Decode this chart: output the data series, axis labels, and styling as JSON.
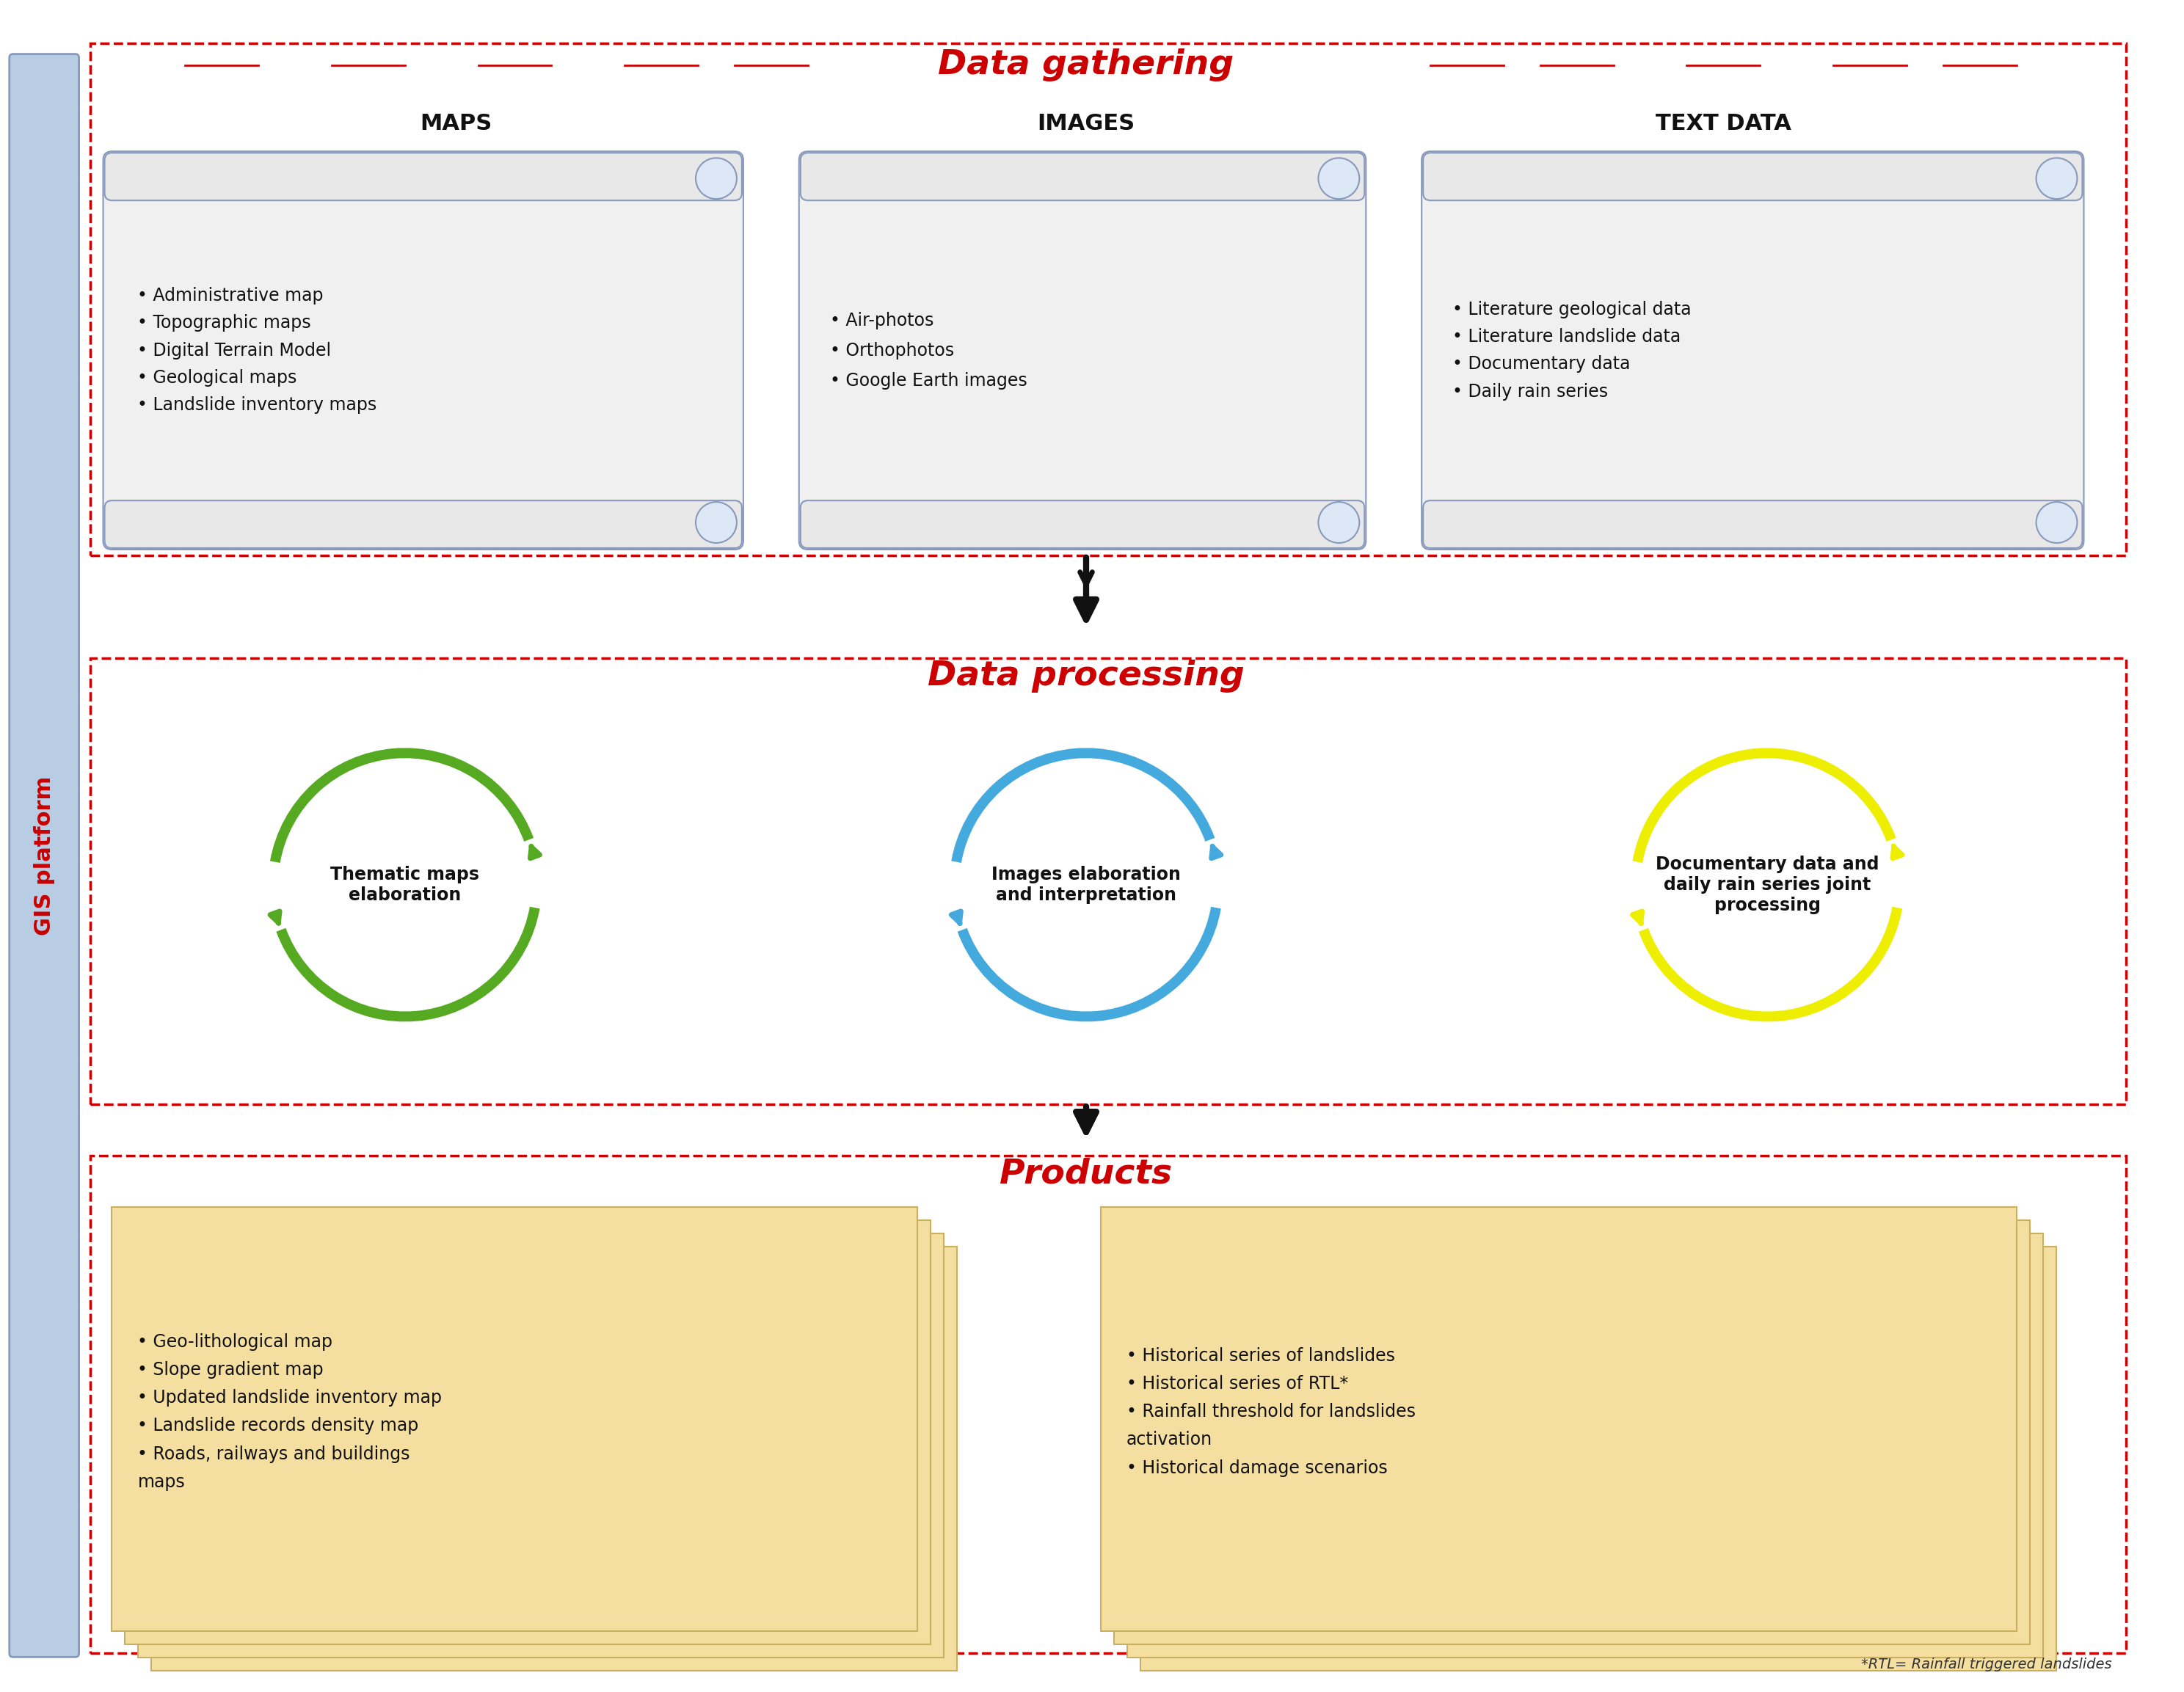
{
  "title": "Data gathering",
  "title2": "Data processing",
  "title3": "Products",
  "title_color": "#cc0000",
  "bg_color": "#ffffff",
  "gis_label": "GIS platform",
  "gis_bg": "#b8cce4",
  "section1_items": {
    "MAPS": [
      "Administrative map",
      "Topographic maps",
      "Digital Terrain Model",
      "Geological maps",
      "Landslide inventory maps"
    ],
    "IMAGES": [
      "Air-photos",
      "Orthophotos",
      "Google Earth images"
    ],
    "TEXT DATA": [
      "Literature geological data",
      "Literature landslide data",
      "Documentary data",
      "Daily rain series"
    ]
  },
  "section2_items": {
    "green": "Thematic maps\nelaboration",
    "blue": "Images elaboration\nand interpretation",
    "yellow": "Documentary data and\ndaily rain series joint\nprocessing"
  },
  "section3_left": [
    "Geo-lithological map",
    "Slope gradient map",
    "Updated landslide inventory map",
    "Landslide records density map",
    "Roads, railways and buildings\nmaps"
  ],
  "section3_right": [
    "Historical series of landslides",
    "Historical series of RTL*",
    "Rainfall threshold for landslides\nactivation",
    "Historical damage scenarios"
  ],
  "footnote": "*RTL= Rainfall triggered landslides",
  "scroll_bg": "#f0f0f0",
  "scroll_border": "#8899bb",
  "dashed_border": "#cc0000",
  "arrow_color": "#111111",
  "sticky_bg": "#f5dfa0",
  "sticky_border": "#c8b060"
}
